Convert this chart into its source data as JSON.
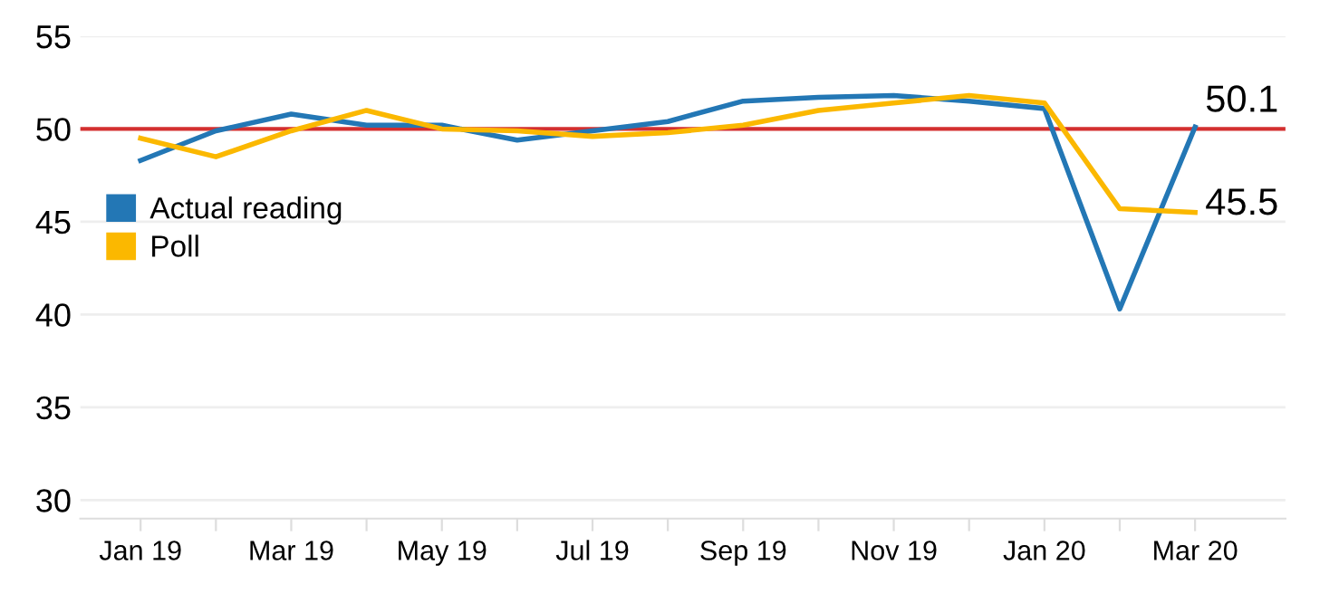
{
  "chart_data": {
    "type": "line",
    "categories": [
      "Jan 19",
      null,
      "Mar 19",
      null,
      "May 19",
      null,
      "Jul 19",
      null,
      "Sep 19",
      null,
      "Nov 19",
      null,
      "Jan 20",
      null,
      "Mar 20"
    ],
    "series": [
      {
        "name": "Actual reading",
        "color": "#2377b5",
        "values": [
          48.3,
          49.9,
          50.8,
          50.2,
          50.2,
          49.4,
          49.9,
          50.4,
          51.5,
          51.7,
          51.8,
          51.5,
          51.1,
          40.3,
          50.1
        ],
        "value_labels": [
          null,
          null,
          null,
          null,
          null,
          null,
          null,
          null,
          null,
          null,
          null,
          null,
          null,
          null,
          "50.1"
        ]
      },
      {
        "name": "Poll",
        "color": "#fbb800",
        "values": [
          49.5,
          48.5,
          49.9,
          51.0,
          50.0,
          49.9,
          49.6,
          49.8,
          50.2,
          51.0,
          51.4,
          51.8,
          51.4,
          45.7,
          45.5
        ],
        "value_labels": [
          null,
          null,
          null,
          null,
          null,
          null,
          null,
          null,
          null,
          null,
          null,
          null,
          null,
          null,
          "45.5"
        ]
      }
    ],
    "ylim": [
      29,
      55
    ],
    "yticks": [
      30,
      35,
      40,
      45,
      50,
      55
    ],
    "grid": "y",
    "legend": "left",
    "ref_lines": [
      {
        "axis": "y",
        "value": 50,
        "color": "#d32f2f"
      }
    ]
  }
}
